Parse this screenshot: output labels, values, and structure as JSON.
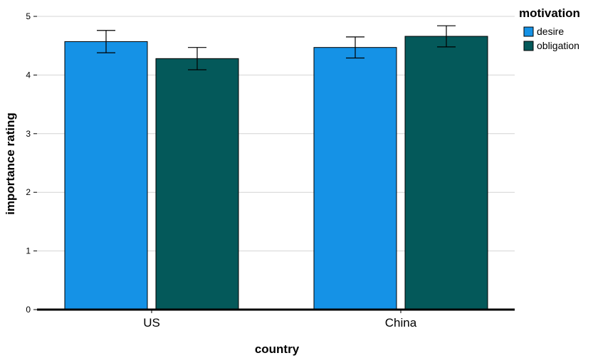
{
  "chart_data": {
    "type": "bar",
    "categories": [
      "US",
      "China"
    ],
    "series": [
      {
        "name": "desire",
        "color": "#1592e6",
        "values": [
          4.57,
          4.47
        ],
        "error_low": [
          4.38,
          4.29
        ],
        "error_high": [
          4.76,
          4.65
        ]
      },
      {
        "name": "obligation",
        "color": "#04595a",
        "values": [
          4.28,
          4.66
        ],
        "error_low": [
          4.09,
          4.48
        ],
        "error_high": [
          4.47,
          4.84
        ]
      }
    ],
    "xlabel": "country",
    "ylabel": "importance rating",
    "ylim": [
      0,
      5
    ],
    "yticks": [
      0,
      1,
      2,
      3,
      4,
      5
    ],
    "legend": {
      "title": "motivation",
      "position": "top-right"
    },
    "grid": true
  }
}
